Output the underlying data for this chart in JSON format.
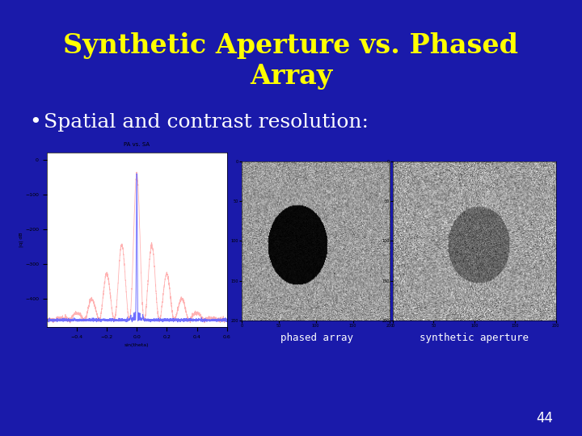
{
  "background_color": "#1a1aaa",
  "title_line1": "Synthetic Aperture vs. Phased",
  "title_line2": "Array",
  "title_color": "#ffff00",
  "title_fontsize": 24,
  "title_fontstyle": "bold",
  "bullet_text": "Spatial and contrast resolution:",
  "bullet_color": "#ffffff",
  "bullet_fontsize": 18,
  "caption_left": "phased array",
  "caption_right": "synthetic aperture",
  "caption_color": "#ffffff",
  "caption_fontsize": 9,
  "page_number": "44",
  "page_number_color": "#ffffff",
  "page_number_fontsize": 12
}
